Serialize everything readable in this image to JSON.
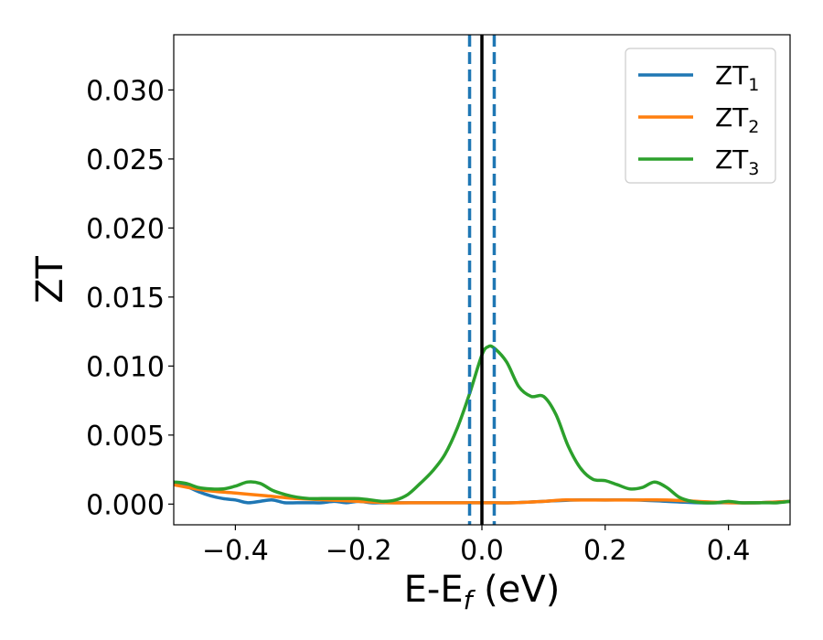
{
  "chart_data": {
    "type": "line",
    "xlabel": "E-E",
    "xlabel_sub": "f",
    "xlabel_unit": " (eV)",
    "ylabel": "ZT",
    "xlim": [
      -0.5,
      0.5
    ],
    "ylim": [
      -0.0015,
      0.034
    ],
    "xticks": [
      -0.4,
      -0.2,
      0.0,
      0.2,
      0.4
    ],
    "xtick_labels": [
      "−0.4",
      "−0.2",
      "0.0",
      "0.2",
      "0.4"
    ],
    "yticks": [
      0.0,
      0.005,
      0.01,
      0.015,
      0.02,
      0.025,
      0.03
    ],
    "ytick_labels": [
      "0.000",
      "0.005",
      "0.010",
      "0.015",
      "0.020",
      "0.025",
      "0.030"
    ],
    "grid": false,
    "legend_position": "top-right",
    "vertical_lines": [
      {
        "x": 0.0,
        "style": "solid",
        "color": "#000000"
      },
      {
        "x": -0.02,
        "style": "dashed",
        "color": "#1f77b4"
      },
      {
        "x": 0.02,
        "style": "dashed",
        "color": "#1f77b4"
      }
    ],
    "series": [
      {
        "name": "ZT",
        "sub": "1",
        "color": "#1f77b4",
        "x": [
          -0.5,
          -0.48,
          -0.46,
          -0.44,
          -0.42,
          -0.4,
          -0.38,
          -0.36,
          -0.34,
          -0.32,
          -0.3,
          -0.28,
          -0.26,
          -0.24,
          -0.22,
          -0.2,
          -0.18,
          -0.16,
          -0.14,
          -0.12,
          -0.1,
          -0.05,
          0.0,
          0.05,
          0.1,
          0.15,
          0.2,
          0.25,
          0.3,
          0.35,
          0.4,
          0.45,
          0.5
        ],
        "y": [
          0.0016,
          0.0013,
          0.0009,
          0.0006,
          0.0004,
          0.0003,
          0.0001,
          0.0002,
          0.0003,
          0.0001,
          0.0001,
          0.0001,
          0.0001,
          0.0002,
          0.0001,
          0.0002,
          0.0001,
          0.0001,
          0.0001,
          0.0001,
          0.0001,
          0.0001,
          0.0001,
          0.0001,
          0.0002,
          0.0003,
          0.0003,
          0.0003,
          0.0002,
          0.0001,
          0.0001,
          0.0001,
          0.0002
        ]
      },
      {
        "name": "ZT",
        "sub": "2",
        "color": "#ff7f0e",
        "x": [
          -0.5,
          -0.45,
          -0.4,
          -0.35,
          -0.3,
          -0.25,
          -0.2,
          -0.15,
          -0.1,
          -0.05,
          0.0,
          0.05,
          0.1,
          0.13,
          0.15,
          0.2,
          0.25,
          0.3,
          0.35,
          0.4,
          0.45,
          0.5
        ],
        "y": [
          0.0014,
          0.001,
          0.0008,
          0.0006,
          0.0004,
          0.0003,
          0.0002,
          0.0001,
          0.0001,
          0.0001,
          0.0001,
          0.0001,
          0.0002,
          0.0003,
          0.0003,
          0.0003,
          0.0003,
          0.0003,
          0.0002,
          0.0001,
          0.0001,
          0.0002
        ]
      },
      {
        "name": "ZT",
        "sub": "3",
        "color": "#2ca02c",
        "x": [
          -0.5,
          -0.48,
          -0.46,
          -0.44,
          -0.42,
          -0.4,
          -0.38,
          -0.36,
          -0.34,
          -0.32,
          -0.3,
          -0.28,
          -0.26,
          -0.24,
          -0.22,
          -0.2,
          -0.18,
          -0.16,
          -0.14,
          -0.12,
          -0.1,
          -0.08,
          -0.06,
          -0.04,
          -0.02,
          0.0,
          0.01,
          0.02,
          0.04,
          0.06,
          0.08,
          0.1,
          0.12,
          0.14,
          0.16,
          0.18,
          0.2,
          0.22,
          0.24,
          0.26,
          0.28,
          0.3,
          0.32,
          0.34,
          0.36,
          0.38,
          0.4,
          0.42,
          0.44,
          0.46,
          0.48,
          0.5
        ],
        "y": [
          0.0016,
          0.0015,
          0.0012,
          0.0011,
          0.0011,
          0.0013,
          0.0016,
          0.0015,
          0.001,
          0.0007,
          0.0005,
          0.0004,
          0.0004,
          0.0004,
          0.0004,
          0.0004,
          0.0003,
          0.0002,
          0.0003,
          0.0007,
          0.0015,
          0.0024,
          0.0036,
          0.0055,
          0.008,
          0.0108,
          0.0114,
          0.0113,
          0.0103,
          0.0085,
          0.0078,
          0.0078,
          0.0065,
          0.0042,
          0.0026,
          0.0018,
          0.0017,
          0.0014,
          0.0011,
          0.0012,
          0.0016,
          0.0012,
          0.0005,
          0.0002,
          0.0001,
          0.0001,
          0.0002,
          0.0001,
          0.0001,
          0.0001,
          0.0001,
          0.0002
        ]
      }
    ]
  }
}
